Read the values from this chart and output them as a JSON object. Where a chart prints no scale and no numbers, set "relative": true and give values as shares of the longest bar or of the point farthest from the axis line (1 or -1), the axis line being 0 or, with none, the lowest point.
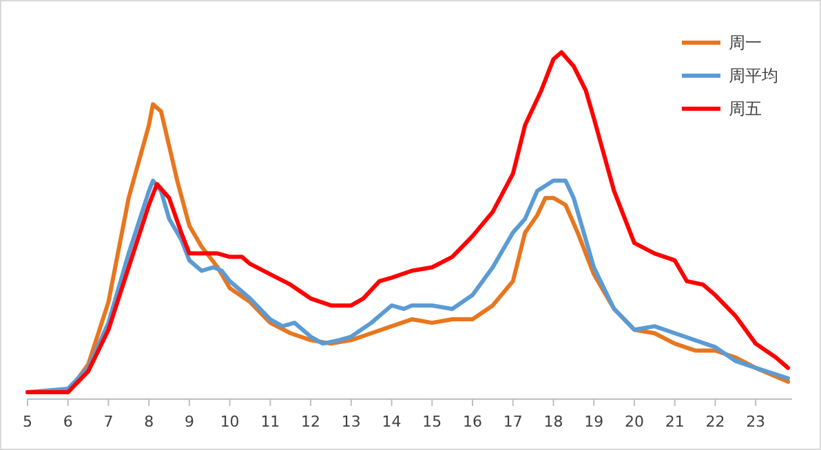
{
  "chart_data": {
    "type": "line",
    "relative": true,
    "xlim": [
      5,
      23.9
    ],
    "xticks": [
      5,
      6,
      7,
      8,
      9,
      10,
      11,
      12,
      13,
      14,
      15,
      16,
      17,
      18,
      19,
      20,
      21,
      22,
      23
    ],
    "legend": "top right",
    "grid": false,
    "line_style": "solid",
    "marker": "none",
    "series": [
      {
        "name": "周一",
        "color": "#e8761e",
        "x": [
          5,
          6,
          6.5,
          7,
          7.5,
          8,
          8.1,
          8.3,
          8.5,
          8.7,
          9,
          9.3,
          9.7,
          10,
          10.5,
          11,
          11.5,
          12,
          12.5,
          13,
          13.5,
          14,
          14.5,
          15,
          15.5,
          16,
          16.5,
          17,
          17.3,
          17.6,
          17.8,
          18,
          18.3,
          18.6,
          19,
          19.5,
          20,
          20.5,
          21,
          21.5,
          22,
          22.5,
          23,
          23.8
        ],
        "values": [
          0.02,
          0.02,
          0.1,
          0.28,
          0.58,
          0.79,
          0.85,
          0.83,
          0.73,
          0.63,
          0.5,
          0.44,
          0.38,
          0.32,
          0.28,
          0.22,
          0.19,
          0.17,
          0.16,
          0.17,
          0.19,
          0.21,
          0.23,
          0.22,
          0.23,
          0.23,
          0.27,
          0.34,
          0.48,
          0.53,
          0.58,
          0.58,
          0.56,
          0.48,
          0.36,
          0.26,
          0.2,
          0.19,
          0.16,
          0.14,
          0.14,
          0.12,
          0.09,
          0.05
        ]
      },
      {
        "name": "周平均",
        "color": "#5b9bd5",
        "x": [
          5,
          6,
          6.5,
          7,
          7.5,
          8,
          8.1,
          8.3,
          8.5,
          8.8,
          9,
          9.3,
          9.6,
          9.8,
          10,
          10.5,
          11,
          11.3,
          11.6,
          12,
          12.3,
          12.7,
          13,
          13.5,
          13.8,
          14,
          14.3,
          14.5,
          15,
          15.5,
          16,
          16.5,
          17,
          17.3,
          17.6,
          18,
          18.3,
          18.5,
          18.8,
          19,
          19.5,
          20,
          20.5,
          21,
          21.5,
          22,
          22.5,
          23,
          23.8
        ],
        "values": [
          0.02,
          0.03,
          0.09,
          0.22,
          0.42,
          0.6,
          0.63,
          0.6,
          0.52,
          0.46,
          0.4,
          0.37,
          0.38,
          0.37,
          0.34,
          0.29,
          0.23,
          0.21,
          0.22,
          0.18,
          0.16,
          0.17,
          0.18,
          0.22,
          0.25,
          0.27,
          0.26,
          0.27,
          0.27,
          0.26,
          0.3,
          0.38,
          0.48,
          0.52,
          0.6,
          0.63,
          0.63,
          0.58,
          0.46,
          0.38,
          0.26,
          0.2,
          0.21,
          0.19,
          0.17,
          0.15,
          0.11,
          0.09,
          0.06
        ]
      },
      {
        "name": "周五",
        "color": "#ff0000",
        "x": [
          5,
          5.5,
          6,
          6.5,
          7,
          7.5,
          8,
          8.2,
          8.5,
          8.8,
          9,
          9.3,
          9.7,
          10,
          10.3,
          10.5,
          11,
          11.5,
          12,
          12.5,
          13,
          13.3,
          13.7,
          14,
          14.5,
          15,
          15.5,
          16,
          16.5,
          17,
          17.3,
          17.7,
          18,
          18.2,
          18.5,
          18.8,
          19,
          19.5,
          20,
          20.5,
          21,
          21.3,
          21.7,
          22,
          22.5,
          23,
          23.5,
          23.8
        ],
        "values": [
          0.02,
          0.02,
          0.02,
          0.08,
          0.2,
          0.38,
          0.56,
          0.62,
          0.58,
          0.48,
          0.42,
          0.42,
          0.42,
          0.41,
          0.41,
          0.39,
          0.36,
          0.33,
          0.29,
          0.27,
          0.27,
          0.29,
          0.34,
          0.35,
          0.37,
          0.38,
          0.41,
          0.47,
          0.54,
          0.65,
          0.79,
          0.89,
          0.98,
          1.0,
          0.96,
          0.89,
          0.81,
          0.6,
          0.45,
          0.42,
          0.4,
          0.34,
          0.33,
          0.3,
          0.24,
          0.16,
          0.12,
          0.09
        ]
      }
    ]
  }
}
